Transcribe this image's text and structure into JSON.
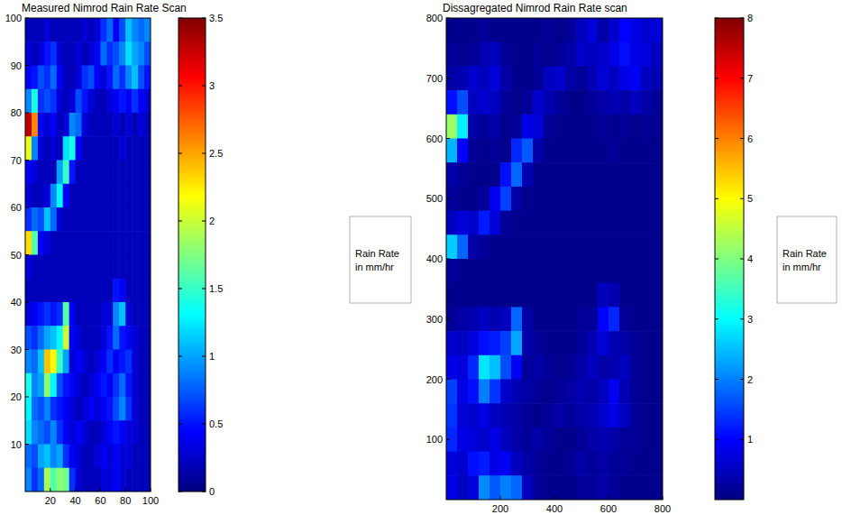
{
  "chart_data": [
    {
      "type": "heatmap",
      "title": "Measured Nimrod Rain Rate Scan",
      "xlim": [
        0,
        100
      ],
      "ylim": [
        0,
        100
      ],
      "xticks": [
        20,
        40,
        60,
        80,
        100
      ],
      "yticks": [
        10,
        20,
        30,
        40,
        50,
        60,
        70,
        80,
        90,
        100
      ],
      "colorbar": {
        "label": "Rain Rate in mm/hr",
        "range": [
          0,
          3.5
        ],
        "ticks": [
          0,
          0.5,
          1,
          1.5,
          2,
          2.5,
          3,
          3.5
        ]
      },
      "cells": [
        [
          0.2,
          0.2,
          0.2,
          0.3,
          0.2,
          0.2,
          0.2,
          0.2,
          0.2,
          0.3,
          0.2,
          0.3,
          0.6,
          0.8,
          0.4,
          0.7,
          1.1,
          0.9,
          0.8,
          0.9
        ],
        [
          0.3,
          0.2,
          0.3,
          0.5,
          0.6,
          0.3,
          0.2,
          0.2,
          0.3,
          0.2,
          0.3,
          0.4,
          0.8,
          0.6,
          0.7,
          0.9,
          1.2,
          1.0,
          0.9,
          0.7
        ],
        [
          0.4,
          0.5,
          0.7,
          0.6,
          0.8,
          0.4,
          0.2,
          0.2,
          0.3,
          0.6,
          0.7,
          0.4,
          0.3,
          0.5,
          0.8,
          0.6,
          0.9,
          1.1,
          0.7,
          0.5
        ],
        [
          0.9,
          1.4,
          0.6,
          0.7,
          0.6,
          0.3,
          0.2,
          0.3,
          0.7,
          0.5,
          0.3,
          0.2,
          0.2,
          0.3,
          0.4,
          0.5,
          0.4,
          0.6,
          0.4,
          0.3
        ],
        [
          3.3,
          2.6,
          0.4,
          0.3,
          0.4,
          0.2,
          0.3,
          0.9,
          0.8,
          0.3,
          0.2,
          0.2,
          0.2,
          0.2,
          0.3,
          0.2,
          0.3,
          0.2,
          0.3,
          0.2
        ],
        [
          2.1,
          0.9,
          0.3,
          0.2,
          0.3,
          0.2,
          1.2,
          1.4,
          0.4,
          0.2,
          0.2,
          0.2,
          0.2,
          0.2,
          0.2,
          0.3,
          0.2,
          0.2,
          0.2,
          0.2
        ],
        [
          0.4,
          0.3,
          0.2,
          0.2,
          0.2,
          1.0,
          1.5,
          0.5,
          0.2,
          0.2,
          0.2,
          0.2,
          0.2,
          0.2,
          0.2,
          0.2,
          0.2,
          0.2,
          0.2,
          0.2
        ],
        [
          0.3,
          0.2,
          0.2,
          0.3,
          0.9,
          1.3,
          0.4,
          0.2,
          0.2,
          0.2,
          0.2,
          0.2,
          0.2,
          0.2,
          0.2,
          0.2,
          0.2,
          0.2,
          0.2,
          0.2
        ],
        [
          0.6,
          0.8,
          0.7,
          1.1,
          0.8,
          0.3,
          0.2,
          0.2,
          0.2,
          0.2,
          0.2,
          0.2,
          0.2,
          0.2,
          0.2,
          0.2,
          0.2,
          0.2,
          0.2,
          0.2
        ],
        [
          2.3,
          1.6,
          0.4,
          0.3,
          0.2,
          0.2,
          0.2,
          0.2,
          0.2,
          0.2,
          0.2,
          0.2,
          0.2,
          0.2,
          0.2,
          0.2,
          0.2,
          0.2,
          0.2,
          0.2
        ],
        [
          0.3,
          0.2,
          0.2,
          0.2,
          0.2,
          0.2,
          0.2,
          0.2,
          0.2,
          0.2,
          0.2,
          0.2,
          0.2,
          0.2,
          0.2,
          0.2,
          0.2,
          0.2,
          0.2,
          0.2
        ],
        [
          0.2,
          0.2,
          0.2,
          0.2,
          0.2,
          0.2,
          0.2,
          0.2,
          0.2,
          0.2,
          0.2,
          0.2,
          0.2,
          0.2,
          0.5,
          0.4,
          0.2,
          0.2,
          0.2,
          0.2
        ],
        [
          0.3,
          0.4,
          0.5,
          0.6,
          0.5,
          0.6,
          1.6,
          0.4,
          0.2,
          0.2,
          0.2,
          0.2,
          0.3,
          0.3,
          0.9,
          1.1,
          0.3,
          0.2,
          0.2,
          0.2
        ],
        [
          0.7,
          0.6,
          0.8,
          1.0,
          1.1,
          1.3,
          2.0,
          0.4,
          0.3,
          0.2,
          0.2,
          0.2,
          0.3,
          0.5,
          0.8,
          0.5,
          0.4,
          0.3,
          0.2,
          0.2
        ],
        [
          0.9,
          0.8,
          1.1,
          2.4,
          2.2,
          1.5,
          1.0,
          0.3,
          0.4,
          0.3,
          0.2,
          0.3,
          0.4,
          0.6,
          0.4,
          0.5,
          0.6,
          0.3,
          0.2,
          0.2
        ],
        [
          1.4,
          0.9,
          1.0,
          1.8,
          1.3,
          0.7,
          0.5,
          0.4,
          0.3,
          0.2,
          0.3,
          0.4,
          0.5,
          0.4,
          0.6,
          0.8,
          0.5,
          0.3,
          0.2,
          0.2
        ],
        [
          1.3,
          0.8,
          0.7,
          0.9,
          0.6,
          0.5,
          0.4,
          0.3,
          0.2,
          0.3,
          0.4,
          0.3,
          0.4,
          0.5,
          0.7,
          0.9,
          0.6,
          0.3,
          0.2,
          0.2
        ],
        [
          1.2,
          0.9,
          0.8,
          0.7,
          0.9,
          0.6,
          0.4,
          0.3,
          0.4,
          0.3,
          0.2,
          0.2,
          0.3,
          0.4,
          0.5,
          0.4,
          0.3,
          0.3,
          0.2,
          0.2
        ],
        [
          0.8,
          0.7,
          1.0,
          1.1,
          0.9,
          1.0,
          0.6,
          0.4,
          0.3,
          0.2,
          0.2,
          0.3,
          0.4,
          0.3,
          0.4,
          0.3,
          0.3,
          0.2,
          0.2,
          0.2
        ],
        [
          0.9,
          0.6,
          0.8,
          1.9,
          1.6,
          1.8,
          1.7,
          0.6,
          0.3,
          0.2,
          0.2,
          0.2,
          0.3,
          0.3,
          0.4,
          0.3,
          0.2,
          0.2,
          0.2,
          0.2
        ]
      ]
    },
    {
      "type": "heatmap",
      "title": "Dissagregated Nimrod Rain Rate scan",
      "xlim": [
        0,
        800
      ],
      "ylim": [
        0,
        800
      ],
      "xticks": [
        200,
        400,
        600,
        800
      ],
      "yticks": [
        100,
        200,
        300,
        400,
        500,
        600,
        700,
        800
      ],
      "colorbar": {
        "label": "Rain Rate in mm/hr",
        "range": [
          0,
          8
        ],
        "ticks": [
          1,
          2,
          3,
          4,
          5,
          6,
          7,
          8
        ]
      },
      "cells": [
        [
          0.1,
          0.1,
          0.1,
          0.2,
          0.1,
          0.1,
          0.1,
          0.1,
          0.1,
          0.2,
          0.1,
          0.2,
          0.5,
          0.7,
          0.3,
          0.6,
          1.0,
          0.8,
          0.6,
          0.7
        ],
        [
          0.2,
          0.1,
          0.2,
          0.4,
          0.5,
          0.2,
          0.1,
          0.1,
          0.2,
          0.1,
          0.2,
          0.3,
          0.6,
          0.5,
          0.6,
          0.8,
          1.1,
          0.8,
          0.7,
          0.5
        ],
        [
          0.3,
          0.4,
          0.6,
          0.5,
          0.7,
          0.3,
          0.1,
          0.1,
          0.2,
          0.5,
          0.6,
          0.3,
          0.2,
          0.4,
          0.7,
          0.5,
          0.8,
          0.9,
          0.5,
          0.4
        ],
        [
          1.1,
          1.6,
          0.5,
          0.6,
          0.5,
          0.2,
          0.1,
          0.2,
          0.6,
          0.4,
          0.2,
          0.1,
          0.1,
          0.2,
          0.3,
          0.4,
          0.3,
          0.5,
          0.3,
          0.2
        ],
        [
          4.2,
          2.9,
          0.3,
          0.2,
          0.3,
          0.1,
          0.2,
          0.8,
          0.7,
          0.2,
          0.1,
          0.1,
          0.1,
          0.1,
          0.2,
          0.1,
          0.2,
          0.1,
          0.2,
          0.1
        ],
        [
          2.4,
          1.0,
          0.2,
          0.1,
          0.2,
          0.1,
          1.3,
          1.7,
          0.3,
          0.1,
          0.1,
          0.1,
          0.1,
          0.1,
          0.1,
          0.2,
          0.1,
          0.1,
          0.1,
          0.1
        ],
        [
          0.3,
          0.2,
          0.1,
          0.1,
          0.1,
          1.1,
          1.8,
          0.4,
          0.1,
          0.1,
          0.1,
          0.1,
          0.1,
          0.1,
          0.1,
          0.1,
          0.1,
          0.1,
          0.1,
          0.1
        ],
        [
          0.2,
          0.1,
          0.1,
          0.2,
          0.9,
          1.5,
          0.3,
          0.1,
          0.1,
          0.1,
          0.1,
          0.1,
          0.1,
          0.1,
          0.1,
          0.1,
          0.1,
          0.1,
          0.1,
          0.1
        ],
        [
          0.5,
          0.7,
          0.6,
          1.2,
          0.7,
          0.2,
          0.1,
          0.1,
          0.1,
          0.1,
          0.1,
          0.1,
          0.1,
          0.1,
          0.1,
          0.1,
          0.1,
          0.1,
          0.1,
          0.1
        ],
        [
          2.6,
          1.8,
          0.3,
          0.2,
          0.1,
          0.1,
          0.1,
          0.1,
          0.1,
          0.1,
          0.1,
          0.1,
          0.1,
          0.1,
          0.1,
          0.1,
          0.1,
          0.1,
          0.1,
          0.1
        ],
        [
          0.2,
          0.1,
          0.1,
          0.1,
          0.1,
          0.1,
          0.1,
          0.1,
          0.1,
          0.1,
          0.1,
          0.1,
          0.1,
          0.1,
          0.1,
          0.1,
          0.1,
          0.1,
          0.1,
          0.1
        ],
        [
          0.1,
          0.1,
          0.1,
          0.1,
          0.1,
          0.1,
          0.1,
          0.1,
          0.1,
          0.1,
          0.1,
          0.1,
          0.1,
          0.1,
          0.5,
          0.4,
          0.1,
          0.1,
          0.1,
          0.1
        ],
        [
          0.2,
          0.3,
          0.4,
          0.5,
          0.4,
          0.5,
          1.8,
          0.3,
          0.1,
          0.1,
          0.1,
          0.1,
          0.2,
          0.2,
          1.0,
          1.3,
          0.2,
          0.1,
          0.1,
          0.1
        ],
        [
          0.6,
          0.5,
          0.7,
          1.1,
          1.2,
          1.5,
          2.3,
          0.3,
          0.2,
          0.1,
          0.1,
          0.1,
          0.2,
          0.4,
          0.7,
          0.4,
          0.3,
          0.2,
          0.1,
          0.1
        ],
        [
          0.8,
          0.7,
          1.3,
          2.8,
          2.5,
          1.6,
          0.9,
          0.2,
          0.3,
          0.2,
          0.1,
          0.2,
          0.3,
          0.5,
          0.3,
          0.4,
          0.5,
          0.2,
          0.1,
          0.1
        ],
        [
          1.5,
          0.8,
          1.1,
          2.0,
          1.4,
          0.6,
          0.4,
          0.3,
          0.2,
          0.1,
          0.2,
          0.3,
          0.4,
          0.3,
          0.5,
          0.9,
          0.4,
          0.2,
          0.1,
          0.1
        ],
        [
          1.4,
          0.7,
          0.6,
          0.8,
          0.5,
          0.4,
          0.3,
          0.2,
          0.1,
          0.2,
          0.3,
          0.2,
          0.3,
          0.4,
          0.6,
          0.8,
          0.5,
          0.2,
          0.1,
          0.1
        ],
        [
          1.3,
          0.8,
          0.7,
          0.6,
          0.8,
          0.5,
          0.3,
          0.2,
          0.3,
          0.2,
          0.1,
          0.1,
          0.2,
          0.3,
          0.4,
          0.3,
          0.2,
          0.2,
          0.1,
          0.1
        ],
        [
          0.7,
          0.6,
          1.1,
          1.2,
          0.8,
          0.9,
          0.5,
          0.3,
          0.2,
          0.1,
          0.1,
          0.2,
          0.3,
          0.2,
          0.3,
          0.2,
          0.2,
          0.1,
          0.1,
          0.1
        ],
        [
          0.8,
          0.5,
          0.7,
          2.1,
          1.7,
          2.0,
          1.8,
          0.5,
          0.2,
          0.1,
          0.1,
          0.1,
          0.2,
          0.2,
          0.3,
          0.2,
          0.1,
          0.1,
          0.1,
          0.1
        ]
      ]
    }
  ]
}
